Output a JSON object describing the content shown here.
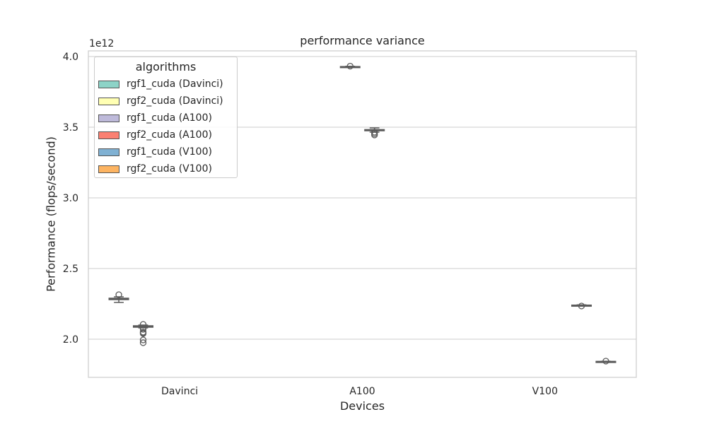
{
  "chart_data": {
    "type": "box",
    "title": "performance variance",
    "xlabel": "Devices",
    "ylabel": "Performance (flops/second)",
    "y_offset_label": "1e12",
    "ylim": [
      1.73,
      4.04
    ],
    "yticks": [
      2.0,
      2.5,
      3.0,
      3.5,
      4.0
    ],
    "ytick_labels": [
      "2.0",
      "2.5",
      "3.0",
      "3.5",
      "4.0"
    ],
    "categories": [
      "Davinci",
      "A100",
      "V100"
    ],
    "grid": true,
    "legend": {
      "title": "algorithms",
      "placement": "top-left"
    },
    "series": [
      {
        "name": "rgf1_cuda (Davinci)",
        "color": "#8dd3c7",
        "category": "Davinci",
        "box": {
          "whislo": 2.26,
          "q1": 2.28,
          "med": 2.285,
          "q3": 2.29,
          "whishi": 2.3,
          "fliers": [
            2.315
          ]
        }
      },
      {
        "name": "rgf2_cuda (Davinci)",
        "color": "#ffffb3",
        "category": "Davinci",
        "box": {
          "whislo": 2.08,
          "q1": 2.085,
          "med": 2.09,
          "q3": 2.095,
          "whishi": 2.1,
          "fliers": [
            2.105,
            2.08,
            2.07,
            2.05,
            2.045,
            2.04,
            1.995,
            1.975
          ]
        }
      },
      {
        "name": "rgf1_cuda (A100)",
        "color": "#bebada",
        "category": "A100",
        "box": {
          "whislo": 3.925,
          "q1": 3.927,
          "med": 3.928,
          "q3": 3.929,
          "whishi": 3.931,
          "fliers": [
            3.932
          ]
        }
      },
      {
        "name": "rgf2_cuda (A100)",
        "color": "#fb8072",
        "category": "A100",
        "box": {
          "whislo": 3.465,
          "q1": 3.475,
          "med": 3.48,
          "q3": 3.483,
          "whishi": 3.495,
          "fliers": [
            3.465,
            3.455,
            3.445
          ]
        }
      },
      {
        "name": "rgf1_cuda (V100)",
        "color": "#80b1d3",
        "category": "V100",
        "box": {
          "whislo": 2.237,
          "q1": 2.239,
          "med": 2.24,
          "q3": 2.241,
          "whishi": 2.243,
          "fliers": [
            2.235
          ]
        }
      },
      {
        "name": "rgf2_cuda (V100)",
        "color": "#fdb462",
        "category": "V100",
        "box": {
          "whislo": 1.84,
          "q1": 1.841,
          "med": 1.842,
          "q3": 1.843,
          "whishi": 1.844,
          "fliers": [
            1.845
          ]
        }
      }
    ]
  }
}
